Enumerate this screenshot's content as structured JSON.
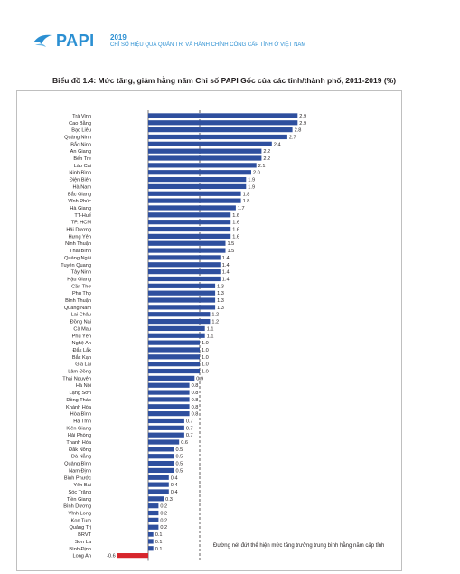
{
  "header": {
    "logo_name": "PAPI",
    "logo_year": "2019",
    "logo_subtitle": "CHỈ SỐ HIỆU QUẢ QUẢN TRỊ VÀ HÀNH CHÍNH CÔNG CẤP TỈNH Ở VIỆT NAM",
    "brand_color": "#2b8fd2"
  },
  "chart_data": {
    "type": "bar",
    "orientation": "horizontal",
    "title": "Biểu đồ 1.4: Mức tăng, giảm hằng năm Chỉ số PAPI Gốc của các tỉnh/thành phố, 2011-2019 (%)",
    "xlabel": "",
    "ylabel": "",
    "xlim": [
      -0.6,
      2.9
    ],
    "grid": false,
    "bar_color": "#2e4f9e",
    "negative_color": "#d7262c",
    "categories": [
      "Trà Vinh",
      "Cao Bằng",
      "Bạc Liêu",
      "Quảng Ninh",
      "Bắc Ninh",
      "An Giang",
      "Bến Tre",
      "Lào Cai",
      "Ninh Bình",
      "Điện Biên",
      "Hà Nam",
      "Bắc Giang",
      "Vĩnh Phúc",
      "Hà Giang",
      "TT-Huế",
      "TP. HCM",
      "Hải Dương",
      "Hưng Yên",
      "Ninh Thuận",
      "Thái Bình",
      "Quảng Ngãi",
      "Tuyên Quang",
      "Tây Ninh",
      "Hậu Giang",
      "Cần Thơ",
      "Phú Thọ",
      "Bình Thuận",
      "Quảng Nam",
      "Lai Châu",
      "Đồng Nai",
      "Cà Mau",
      "Phú Yên",
      "Nghệ An",
      "Đắk Lắk",
      "Bắc Kạn",
      "Gia Lai",
      "Lâm Đồng",
      "Thái Nguyên",
      "Hà Nội",
      "Lạng Sơn",
      "Đồng Tháp",
      "Khánh Hòa",
      "Hòa Bình",
      "Hà Tĩnh",
      "Kiên Giang",
      "Hải Phòng",
      "Thanh Hóa",
      "Đắk Nông",
      "Đà Nẵng",
      "Quảng Bình",
      "Nam Định",
      "Bình Phước",
      "Yên Bái",
      "Sóc Trăng",
      "Tiền Giang",
      "Bình Dương",
      "Vĩnh Long",
      "Kon Tum",
      "Quảng Trị",
      "BRVT",
      "Sơn La",
      "Bình Định",
      "Long An"
    ],
    "values": [
      2.9,
      2.9,
      2.8,
      2.7,
      2.4,
      2.2,
      2.2,
      2.1,
      2.0,
      1.9,
      1.9,
      1.8,
      1.8,
      1.7,
      1.6,
      1.6,
      1.6,
      1.6,
      1.5,
      1.5,
      1.4,
      1.4,
      1.4,
      1.4,
      1.3,
      1.3,
      1.3,
      1.3,
      1.2,
      1.2,
      1.1,
      1.1,
      1.0,
      1.0,
      1.0,
      1.0,
      1.0,
      0.9,
      0.8,
      0.8,
      0.8,
      0.8,
      0.8,
      0.7,
      0.7,
      0.7,
      0.6,
      0.5,
      0.5,
      0.5,
      0.5,
      0.4,
      0.4,
      0.4,
      0.3,
      0.2,
      0.2,
      0.2,
      0.2,
      0.1,
      0.1,
      0.1,
      -0.6
    ],
    "value_labels": [
      "2.9",
      "2.9",
      "2.8",
      "2.7",
      "2.4",
      "2.2",
      "2.2",
      "2.1",
      "2.0",
      "1.9",
      "1.9",
      "1.8",
      "1.8",
      "1.7",
      "1.6",
      "1.6",
      "1.6",
      "1.6",
      "1.5",
      "1.5",
      "1.4",
      "1.4",
      "1.4",
      "1.4",
      "1.3",
      "1.3",
      "1.3",
      "1.3",
      "1.2",
      "1.2",
      "1.1",
      "1.1",
      "1.0",
      "1.0",
      "1.0",
      "1.0",
      "1.0",
      "0.9",
      "0.8",
      "0.8",
      "0.8",
      "0.8",
      "0.8",
      "0.7",
      "0.7",
      "0.7",
      "0.6",
      "0.5",
      "0.5",
      "0.5",
      "0.5",
      "0.4",
      "0.4",
      "0.4",
      "0.3",
      "0.2",
      "0.2",
      "0.2",
      "0.2",
      "0.1",
      "0.1",
      "0.1",
      "-0.6"
    ],
    "reference_line_value": 1.0,
    "reference_line_style": "dashed",
    "annotation": "Đường nét đứt thể hiện mức tăng trưởng trung bình hằng năm cấp tỉnh"
  }
}
